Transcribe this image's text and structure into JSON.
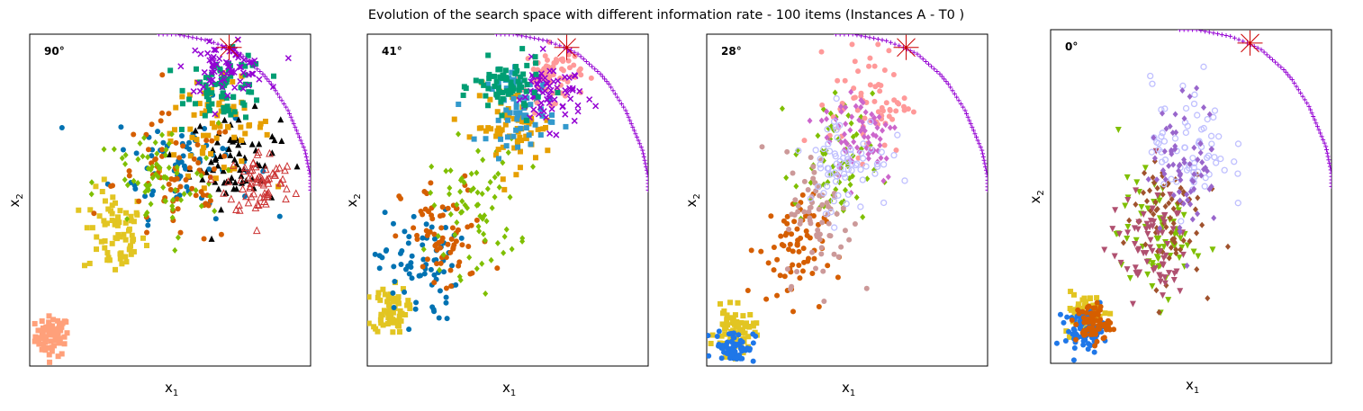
{
  "figure": {
    "title": "Evolution of the search space with different information rate - 100 items (Instances A - T0 )"
  },
  "chart_data": [
    {
      "type": "scatter",
      "panel_label": "90°",
      "xlabel": "x",
      "xlabel_sub": "1",
      "ylabel": "x",
      "ylabel_sub": "2",
      "xticks": [],
      "yticks": [],
      "grid": false,
      "reference_point": [
        0.71,
        0.96
      ],
      "pareto_front": {
        "color": "#9400d3",
        "points": [
          [
            0.46,
            1.0
          ],
          [
            0.52,
            1.0
          ],
          [
            0.58,
            0.99
          ],
          [
            0.64,
            0.98
          ],
          [
            0.7,
            0.96
          ],
          [
            0.75,
            0.94
          ],
          [
            0.79,
            0.91
          ],
          [
            0.83,
            0.88
          ],
          [
            0.86,
            0.85
          ],
          [
            0.89,
            0.81
          ],
          [
            0.92,
            0.77
          ],
          [
            0.94,
            0.73
          ],
          [
            0.96,
            0.69
          ],
          [
            0.98,
            0.65
          ],
          [
            0.99,
            0.61
          ],
          [
            1.0,
            0.57
          ],
          [
            1.0,
            0.53
          ]
        ]
      },
      "clusters": [
        {
          "color": "#ffa07a",
          "marker": "square",
          "cx": 0.08,
          "cy": 0.09,
          "rx": 0.06,
          "ry": 0.06
        },
        {
          "color": "#e2c522",
          "marker": "square",
          "cx": 0.3,
          "cy": 0.4,
          "rx": 0.11,
          "ry": 0.13
        },
        {
          "color": "#0072b2",
          "marker": "circle",
          "cx": 0.55,
          "cy": 0.62,
          "rx": 0.25,
          "ry": 0.17
        },
        {
          "color": "#000000",
          "marker": "triangle",
          "cx": 0.73,
          "cy": 0.62,
          "rx": 0.16,
          "ry": 0.14
        },
        {
          "color": "#e69f00",
          "marker": "square",
          "cx": 0.66,
          "cy": 0.72,
          "rx": 0.2,
          "ry": 0.14
        },
        {
          "color": "#d55e00",
          "marker": "circle",
          "cx": 0.52,
          "cy": 0.55,
          "rx": 0.22,
          "ry": 0.2
        },
        {
          "color": "#009e73",
          "marker": "square",
          "cx": 0.7,
          "cy": 0.84,
          "rx": 0.14,
          "ry": 0.1
        },
        {
          "color": "#9400d3",
          "marker": "x",
          "cx": 0.7,
          "cy": 0.9,
          "rx": 0.14,
          "ry": 0.07
        },
        {
          "color": "#7fbf00",
          "marker": "diamond",
          "cx": 0.45,
          "cy": 0.55,
          "rx": 0.22,
          "ry": 0.18
        },
        {
          "color": "#cc3333",
          "marker": "triangle-open",
          "cx": 0.82,
          "cy": 0.55,
          "rx": 0.12,
          "ry": 0.1
        }
      ]
    },
    {
      "type": "scatter",
      "panel_label": "41°",
      "xlabel": "x",
      "xlabel_sub": "1",
      "ylabel": "x",
      "ylabel_sub": "2",
      "xticks": [],
      "yticks": [],
      "grid": false,
      "reference_point": [
        0.71,
        0.96
      ],
      "pareto_front": {
        "color": "#9400d3",
        "points": [
          [
            0.46,
            1.0
          ],
          [
            0.52,
            1.0
          ],
          [
            0.58,
            0.99
          ],
          [
            0.64,
            0.98
          ],
          [
            0.7,
            0.96
          ],
          [
            0.75,
            0.94
          ],
          [
            0.79,
            0.91
          ],
          [
            0.83,
            0.88
          ],
          [
            0.86,
            0.85
          ],
          [
            0.89,
            0.81
          ],
          [
            0.92,
            0.77
          ],
          [
            0.94,
            0.73
          ],
          [
            0.96,
            0.69
          ],
          [
            0.98,
            0.65
          ],
          [
            0.99,
            0.61
          ],
          [
            1.0,
            0.57
          ],
          [
            1.0,
            0.53
          ]
        ]
      },
      "clusters": [
        {
          "color": "#e2c522",
          "marker": "square",
          "cx": 0.08,
          "cy": 0.17,
          "rx": 0.06,
          "ry": 0.07
        },
        {
          "color": "#0072b2",
          "marker": "circle",
          "cx": 0.18,
          "cy": 0.3,
          "rx": 0.14,
          "ry": 0.17
        },
        {
          "color": "#d55e00",
          "marker": "circle",
          "cx": 0.28,
          "cy": 0.38,
          "rx": 0.16,
          "ry": 0.18
        },
        {
          "color": "#7fbf00",
          "marker": "diamond",
          "cx": 0.38,
          "cy": 0.48,
          "rx": 0.16,
          "ry": 0.2
        },
        {
          "color": "#e69f00",
          "marker": "square",
          "cx": 0.52,
          "cy": 0.72,
          "rx": 0.14,
          "ry": 0.12
        },
        {
          "color": "#3399cc",
          "marker": "square",
          "cx": 0.55,
          "cy": 0.78,
          "rx": 0.12,
          "ry": 0.11
        },
        {
          "color": "#ff9999",
          "marker": "circle",
          "cx": 0.66,
          "cy": 0.88,
          "rx": 0.1,
          "ry": 0.08
        },
        {
          "color": "#9400d3",
          "marker": "x",
          "cx": 0.65,
          "cy": 0.82,
          "rx": 0.12,
          "ry": 0.1
        },
        {
          "color": "#009e73",
          "marker": "square",
          "cx": 0.5,
          "cy": 0.84,
          "rx": 0.12,
          "ry": 0.08
        }
      ]
    },
    {
      "type": "scatter",
      "panel_label": "28°",
      "xlabel": "x",
      "xlabel_sub": "1",
      "ylabel": "x",
      "ylabel_sub": "2",
      "xticks": [],
      "yticks": [],
      "grid": false,
      "reference_point": [
        0.71,
        0.96
      ],
      "pareto_front": {
        "color": "#9400d3",
        "points": [
          [
            0.46,
            1.0
          ],
          [
            0.52,
            1.0
          ],
          [
            0.58,
            0.99
          ],
          [
            0.64,
            0.98
          ],
          [
            0.7,
            0.96
          ],
          [
            0.75,
            0.94
          ],
          [
            0.79,
            0.91
          ],
          [
            0.83,
            0.88
          ],
          [
            0.86,
            0.85
          ],
          [
            0.89,
            0.81
          ],
          [
            0.92,
            0.77
          ],
          [
            0.94,
            0.73
          ],
          [
            0.96,
            0.69
          ],
          [
            0.98,
            0.65
          ],
          [
            0.99,
            0.61
          ],
          [
            1.0,
            0.57
          ],
          [
            1.0,
            0.53
          ]
        ]
      },
      "clusters": [
        {
          "color": "#e2c522",
          "marker": "square",
          "cx": 0.1,
          "cy": 0.1,
          "rx": 0.07,
          "ry": 0.07
        },
        {
          "color": "#1f77e8",
          "marker": "circle",
          "cx": 0.1,
          "cy": 0.06,
          "rx": 0.07,
          "ry": 0.05
        },
        {
          "color": "#d55e00",
          "marker": "circle",
          "cx": 0.3,
          "cy": 0.35,
          "rx": 0.12,
          "ry": 0.16
        },
        {
          "color": "#7fbf00",
          "marker": "diamond",
          "cx": 0.45,
          "cy": 0.6,
          "rx": 0.14,
          "ry": 0.22
        },
        {
          "color": "#ff9999",
          "marker": "circle",
          "cx": 0.58,
          "cy": 0.8,
          "rx": 0.14,
          "ry": 0.16
        },
        {
          "color": "#cc66cc",
          "marker": "diamond",
          "cx": 0.55,
          "cy": 0.7,
          "rx": 0.14,
          "ry": 0.15
        },
        {
          "color": "#cc9999",
          "marker": "circle",
          "cx": 0.4,
          "cy": 0.45,
          "rx": 0.12,
          "ry": 0.2
        },
        {
          "color": "#c0c0ff",
          "marker": "circle-open",
          "cx": 0.5,
          "cy": 0.62,
          "rx": 0.15,
          "ry": 0.15
        }
      ]
    },
    {
      "type": "scatter",
      "panel_label": "0°",
      "xlabel": "x",
      "xlabel_sub": "1",
      "ylabel": "x",
      "ylabel_sub": "2",
      "xticks": [],
      "yticks": [],
      "grid": false,
      "reference_point": [
        0.71,
        0.96
      ],
      "pareto_front": {
        "color": "#9400d3",
        "points": [
          [
            0.46,
            1.0
          ],
          [
            0.52,
            1.0
          ],
          [
            0.58,
            0.99
          ],
          [
            0.64,
            0.98
          ],
          [
            0.7,
            0.96
          ],
          [
            0.75,
            0.94
          ],
          [
            0.79,
            0.91
          ],
          [
            0.83,
            0.88
          ],
          [
            0.86,
            0.85
          ],
          [
            0.89,
            0.81
          ],
          [
            0.92,
            0.77
          ],
          [
            0.94,
            0.73
          ],
          [
            0.96,
            0.69
          ],
          [
            0.98,
            0.65
          ],
          [
            0.99,
            0.61
          ],
          [
            1.0,
            0.57
          ],
          [
            1.0,
            0.53
          ]
        ]
      },
      "clusters": [
        {
          "color": "#e2c522",
          "marker": "square",
          "cx": 0.12,
          "cy": 0.15,
          "rx": 0.07,
          "ry": 0.06
        },
        {
          "color": "#1f77e8",
          "marker": "circle",
          "cx": 0.12,
          "cy": 0.1,
          "rx": 0.07,
          "ry": 0.06
        },
        {
          "color": "#d55e00",
          "marker": "circle",
          "cx": 0.15,
          "cy": 0.12,
          "rx": 0.06,
          "ry": 0.06
        },
        {
          "color": "#7fbf00",
          "marker": "triangle-down",
          "cx": 0.38,
          "cy": 0.38,
          "rx": 0.14,
          "ry": 0.18
        },
        {
          "color": "#a0522d",
          "marker": "diamond",
          "cx": 0.4,
          "cy": 0.45,
          "rx": 0.14,
          "ry": 0.2
        },
        {
          "color": "#b05070",
          "marker": "triangle-down",
          "cx": 0.35,
          "cy": 0.35,
          "rx": 0.14,
          "ry": 0.16
        },
        {
          "color": "#c0c0ff",
          "marker": "circle-open",
          "cx": 0.5,
          "cy": 0.65,
          "rx": 0.14,
          "ry": 0.2
        },
        {
          "color": "#9966cc",
          "marker": "diamond",
          "cx": 0.48,
          "cy": 0.6,
          "rx": 0.12,
          "ry": 0.2
        }
      ]
    }
  ]
}
